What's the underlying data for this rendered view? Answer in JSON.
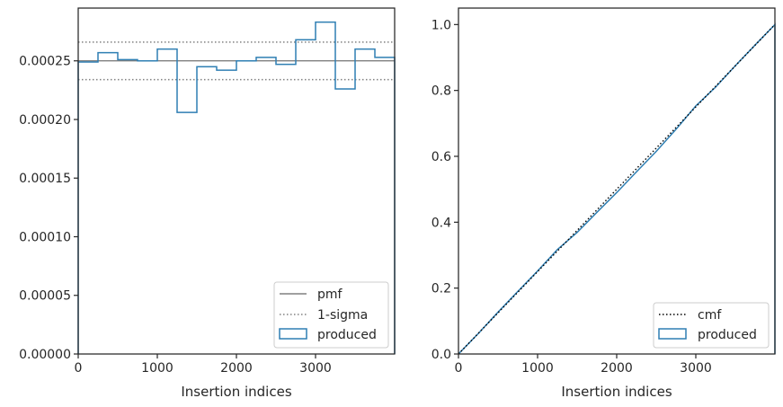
{
  "colors": {
    "produced": "#2f7fb3",
    "pmf": "#808080",
    "sigma": "#808080",
    "cmf": "#000000",
    "axes": "#262626"
  },
  "chart_data": [
    {
      "type": "line",
      "chart_style": "step histogram with reference lines",
      "xlabel": "Insertion indices",
      "ylabel": "",
      "xlim": [
        0,
        4000
      ],
      "ylim": [
        0,
        0.000295
      ],
      "x_ticks": [
        0,
        1000,
        2000,
        3000
      ],
      "x_tick_labels": [
        "0",
        "1000",
        "2000",
        "3000"
      ],
      "y_ticks": [
        0,
        5e-05,
        0.0001,
        0.00015,
        0.0002,
        0.00025
      ],
      "y_tick_labels": [
        "0.00000",
        "0.00005",
        "0.00010",
        "0.00015",
        "0.00020",
        "0.00025"
      ],
      "grid": false,
      "legend_position": "lower-right",
      "series": [
        {
          "name": "pmf",
          "style": "solid",
          "y": 0.00025
        },
        {
          "name": "1-sigma",
          "style": "dotted",
          "y_values": [
            0.000266,
            0.000234
          ]
        },
        {
          "name": "produced",
          "style": "step",
          "bin_edges": [
            0,
            250,
            500,
            750,
            1000,
            1250,
            1500,
            1750,
            2000,
            2250,
            2500,
            2750,
            3000,
            3250,
            3500,
            3750,
            4000
          ],
          "values": [
            0.000249,
            0.000257,
            0.000251,
            0.00025,
            0.00026,
            0.000206,
            0.000245,
            0.000242,
            0.00025,
            0.000253,
            0.000247,
            0.000268,
            0.000283,
            0.000226,
            0.00026,
            0.000253
          ]
        }
      ]
    },
    {
      "type": "line",
      "chart_style": "cumulative step histogram with reference line",
      "xlabel": "Insertion indices",
      "ylabel": "",
      "xlim": [
        0,
        4000
      ],
      "ylim": [
        0,
        1.05
      ],
      "x_ticks": [
        0,
        1000,
        2000,
        3000
      ],
      "x_tick_labels": [
        "0",
        "1000",
        "2000",
        "3000"
      ],
      "y_ticks": [
        0,
        0.2,
        0.4,
        0.6,
        0.8,
        1.0
      ],
      "y_tick_labels": [
        "0.0",
        "0.2",
        "0.4",
        "0.6",
        "0.8",
        "1.0"
      ],
      "grid": false,
      "legend_position": "lower-right",
      "series": [
        {
          "name": "cmf",
          "style": "dotted",
          "x": [
            0,
            4000
          ],
          "y": [
            0,
            1.0
          ]
        },
        {
          "name": "produced",
          "style": "step",
          "x": [
            0,
            250,
            500,
            750,
            1000,
            1250,
            1500,
            1750,
            2000,
            2250,
            2500,
            2750,
            3000,
            3250,
            3500,
            3750,
            4000
          ],
          "y": [
            0,
            0.062,
            0.127,
            0.19,
            0.252,
            0.317,
            0.369,
            0.43,
            0.49,
            0.553,
            0.615,
            0.682,
            0.753,
            0.81,
            0.875,
            0.938,
            1.0
          ]
        }
      ]
    }
  ]
}
